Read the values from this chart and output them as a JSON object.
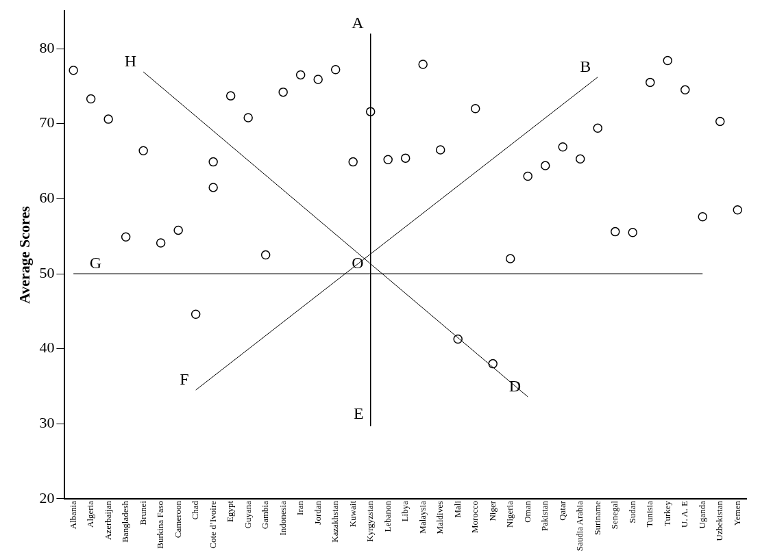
{
  "chart_data": {
    "type": "scatter",
    "ylabel": "Average Scores",
    "categories": [
      "Albania",
      "Algeria",
      "Azerbaijan",
      "Bangladesh",
      "Brunei",
      "Burkina Faso",
      "Cameroon",
      "Chad",
      "Cote d’Ivoire",
      "Egypt",
      "Guyana",
      "Gambia",
      "Indonesia",
      "Iran",
      "Jordan",
      "Kazakhstan",
      "Kuwait",
      "Kyrgyzstan",
      "Lebanon",
      "Libya",
      "Malaysia",
      "Maldives",
      "Mali",
      "Morocco",
      "Niger",
      "Nigeria",
      "Oman",
      "Pakistan",
      "Qatar",
      "Saudia Arabia",
      "Suriname",
      "Senegal",
      "Sudan",
      "Tunisia",
      "Turkey",
      "U. A. E",
      "Uganda",
      "Uzbekistan",
      "Yemen"
    ],
    "ylim": [
      20,
      85
    ],
    "yticks": [
      20,
      30,
      40,
      50,
      60,
      70,
      80
    ],
    "grid": false,
    "legend": false,
    "marker": "circle",
    "series": [
      {
        "type": "scatter",
        "color": "#000000",
        "x": [
          "Albania",
          "Algeria",
          "Azerbaijan",
          "Bangladesh",
          "Brunei",
          "Burkina Faso",
          "Cameroon",
          "Chad",
          "Cote d’Ivoire",
          "Cote d’Ivoire",
          "Egypt",
          "Guyana",
          "Gambia",
          "Indonesia",
          "Iran",
          "Jordan",
          "Kazakhstan",
          "Kuwait",
          "Kyrgyzstan",
          "Lebanon",
          "Libya",
          "Malaysia",
          "Maldives",
          "Mali",
          "Morocco",
          "Niger",
          "Nigeria",
          "Oman",
          "Pakistan",
          "Qatar",
          "Saudia Arabia",
          "Suriname",
          "Senegal",
          "Sudan",
          "Tunisia",
          "Turkey",
          "U. A. E",
          "Uganda",
          "Uzbekistan",
          "Yemen"
        ],
        "values": [
          77.1,
          73.3,
          70.6,
          54.9,
          66.4,
          54.1,
          55.8,
          44.6,
          61.5,
          64.9,
          73.7,
          70.8,
          52.5,
          74.2,
          76.5,
          75.9,
          77.2,
          64.9,
          71.6,
          65.2,
          65.4,
          77.9,
          66.5,
          41.3,
          72.0,
          38.0,
          52.0,
          63.0,
          64.4,
          66.9,
          65.3,
          69.4,
          55.6,
          55.5,
          75.5,
          78.4,
          74.5,
          57.6,
          70.3,
          58.5
        ]
      },
      {
        "type": "line",
        "color": "#000000",
        "marker": "none",
        "x": [
          "Brunei",
          "Oman"
        ],
        "values": [
          76.9,
          33.6
        ]
      },
      {
        "type": "line",
        "color": "#000000",
        "marker": "none",
        "x": [
          "Chad",
          "Suriname"
        ],
        "values": [
          34.5,
          76.2
        ]
      },
      {
        "type": "line",
        "color": "#000000",
        "marker": "none",
        "x": [
          "Kyrgyzstan",
          "Kyrgyzstan"
        ],
        "values": [
          82,
          29.7
        ]
      },
      {
        "type": "line",
        "color": "#000000",
        "marker": "none",
        "x": [
          "Albania",
          "Uganda"
        ],
        "values": [
          50,
          50
        ]
      }
    ],
    "annotations": [
      {
        "text": "A",
        "x": "Kyrgyzstan",
        "y": 82
      },
      {
        "text": "B",
        "x": "Suriname",
        "y": 76.2
      },
      {
        "text": "H",
        "x": "Brunei",
        "y": 76.9
      },
      {
        "text": "G",
        "x": "Azerbaijan",
        "y": 50
      },
      {
        "text": "O",
        "x": "Kyrgyzstan",
        "y": 50
      },
      {
        "text": "F",
        "x": "Chad",
        "y": 34.5
      },
      {
        "text": "D",
        "x": "Oman",
        "y": 33.6
      },
      {
        "text": "E",
        "x": "Kyrgyzstan",
        "y": 30
      }
    ]
  }
}
